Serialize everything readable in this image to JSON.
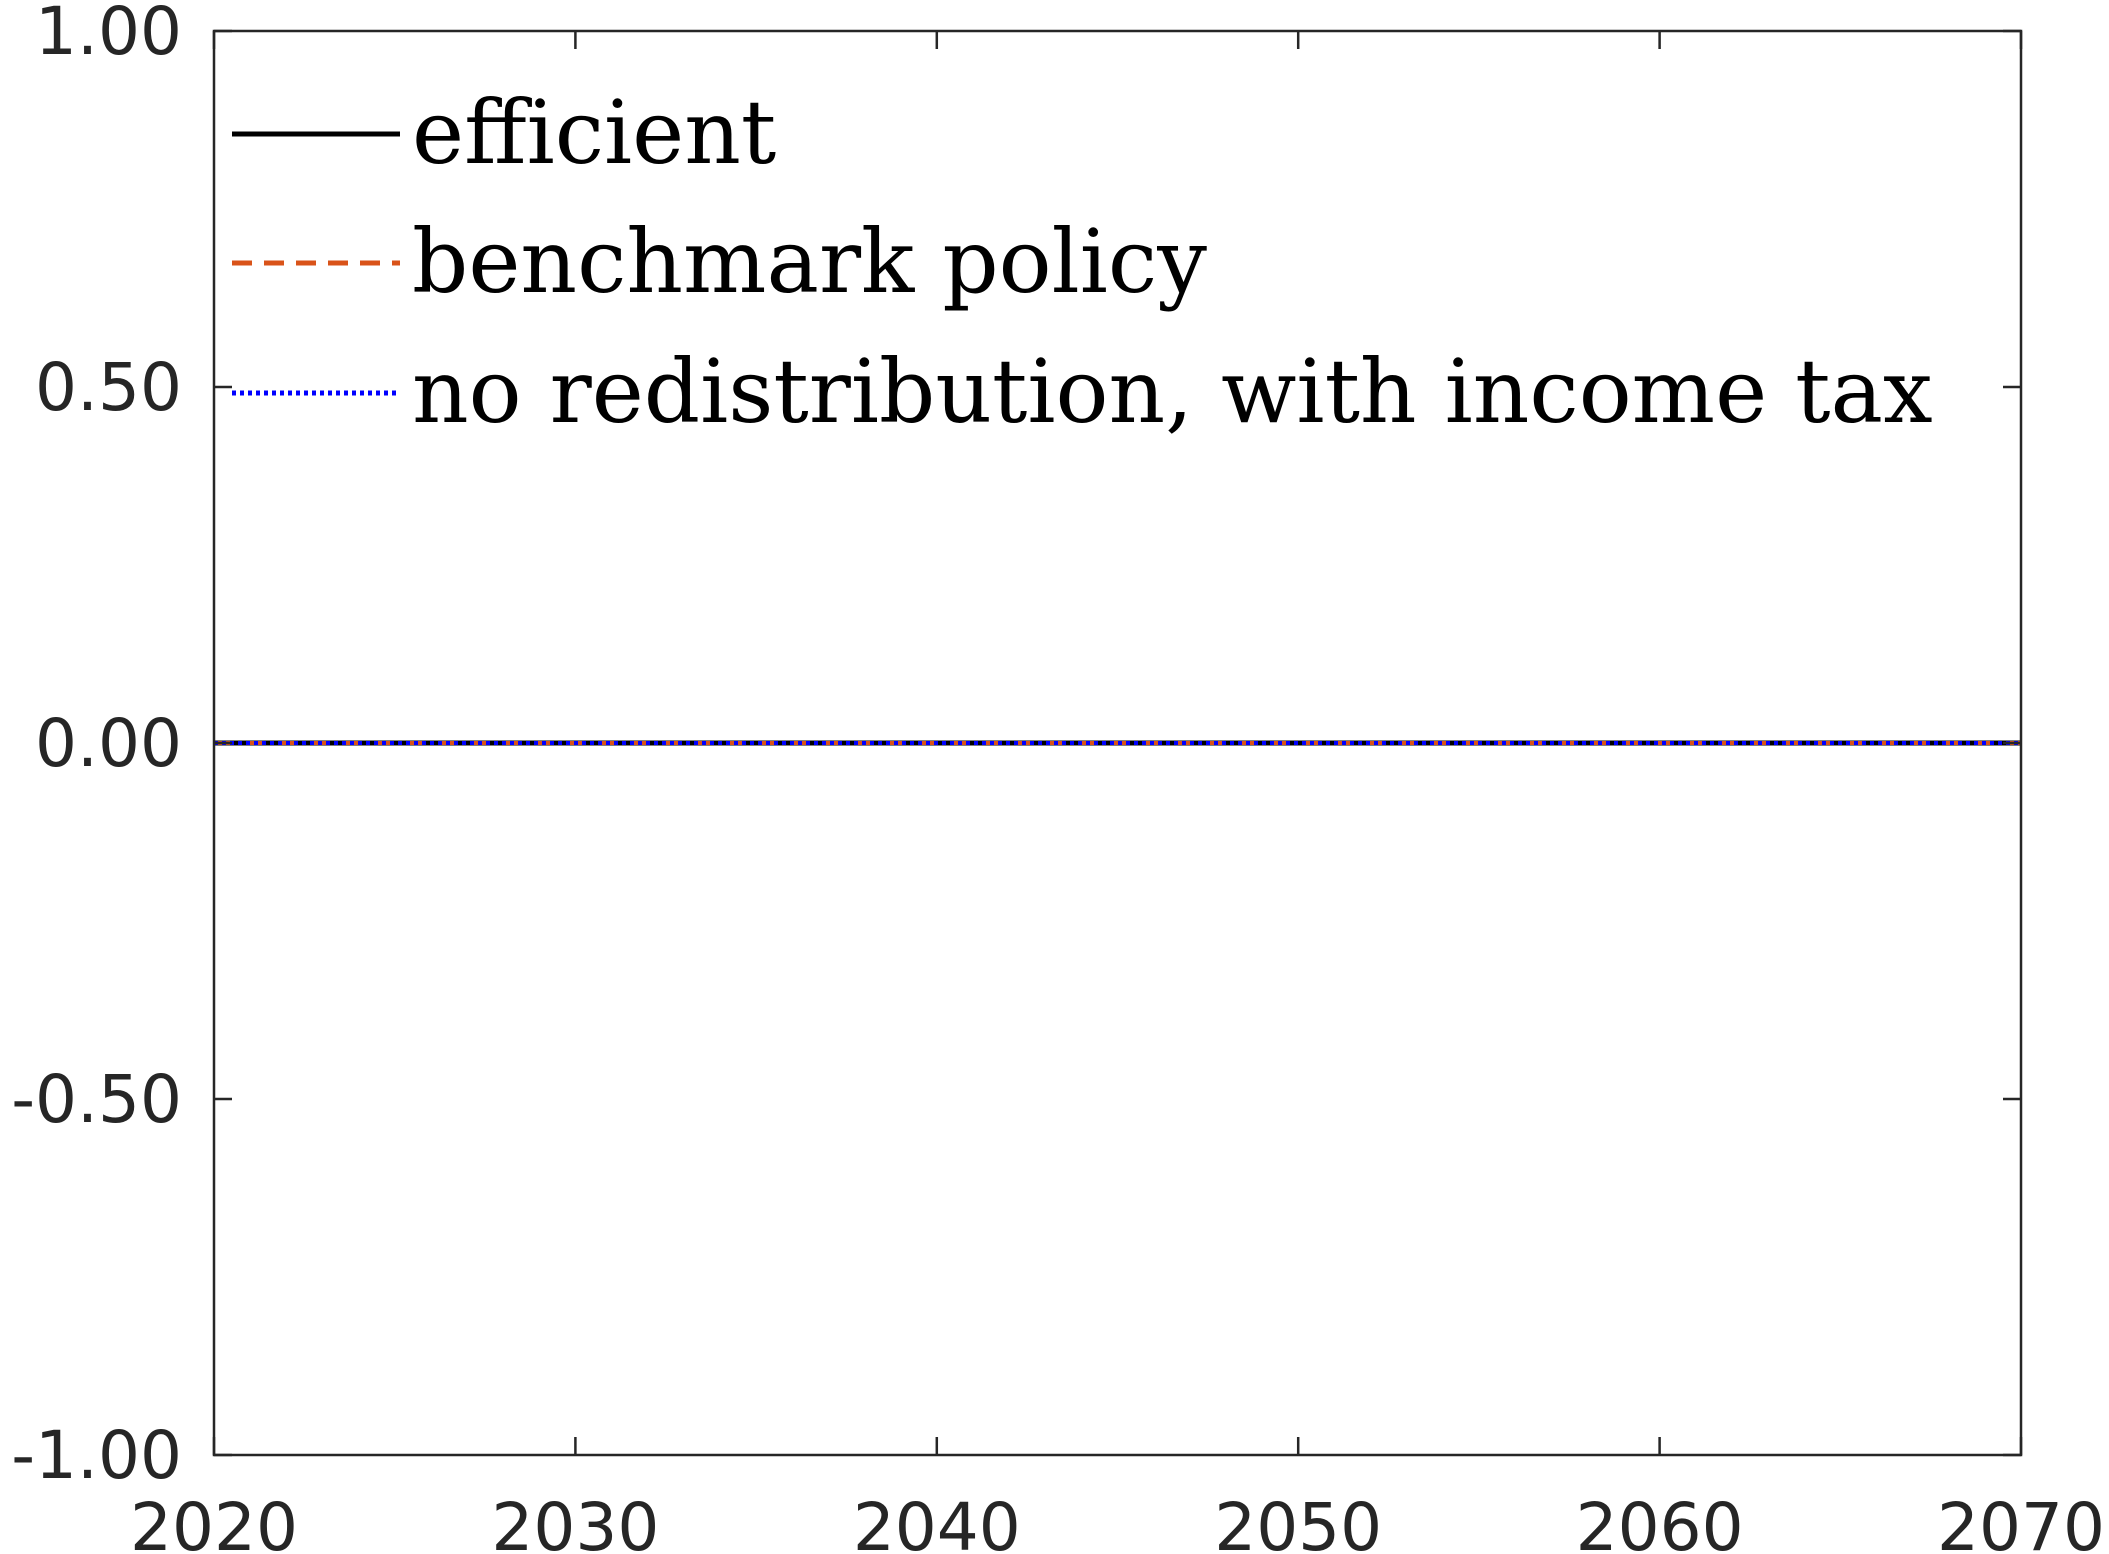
{
  "chart_data": {
    "type": "line",
    "title": "",
    "xlabel": "",
    "ylabel": "",
    "xlim": [
      2020,
      2070
    ],
    "ylim": [
      -1.0,
      1.0
    ],
    "x_ticks": [
      2020,
      2030,
      2040,
      2050,
      2060,
      2070
    ],
    "y_ticks": [
      -1.0,
      -0.5,
      0.0,
      0.5,
      1.0
    ],
    "x_tick_labels": [
      "2020",
      "2030",
      "2040",
      "2050",
      "2060",
      "2070"
    ],
    "y_tick_labels": [
      "-1.00",
      "-0.50",
      "0.00",
      "0.50",
      "1.00"
    ],
    "grid": false,
    "legend_position": "top-left",
    "series": [
      {
        "name": "efficient",
        "color": "#000000",
        "style": "solid",
        "x": [
          2020,
          2025,
          2030,
          2035,
          2040,
          2045,
          2050,
          2055,
          2060,
          2065,
          2070
        ],
        "y": [
          0,
          0,
          0,
          0,
          0,
          0,
          0,
          0,
          0,
          0,
          0
        ]
      },
      {
        "name": "benchmark policy",
        "color": "#d95319",
        "style": "dashed",
        "x": [
          2020,
          2025,
          2030,
          2035,
          2040,
          2045,
          2050,
          2055,
          2060,
          2065,
          2070
        ],
        "y": [
          0,
          0,
          0,
          0,
          0,
          0,
          0,
          0,
          0,
          0,
          0
        ]
      },
      {
        "name": "no redistribution, with income tax",
        "color": "#0000ff",
        "style": "dotted",
        "x": [
          2020,
          2025,
          2030,
          2035,
          2040,
          2045,
          2050,
          2055,
          2060,
          2065,
          2070
        ],
        "y": [
          0,
          0,
          0,
          0,
          0,
          0,
          0,
          0,
          0,
          0,
          0
        ]
      }
    ]
  }
}
